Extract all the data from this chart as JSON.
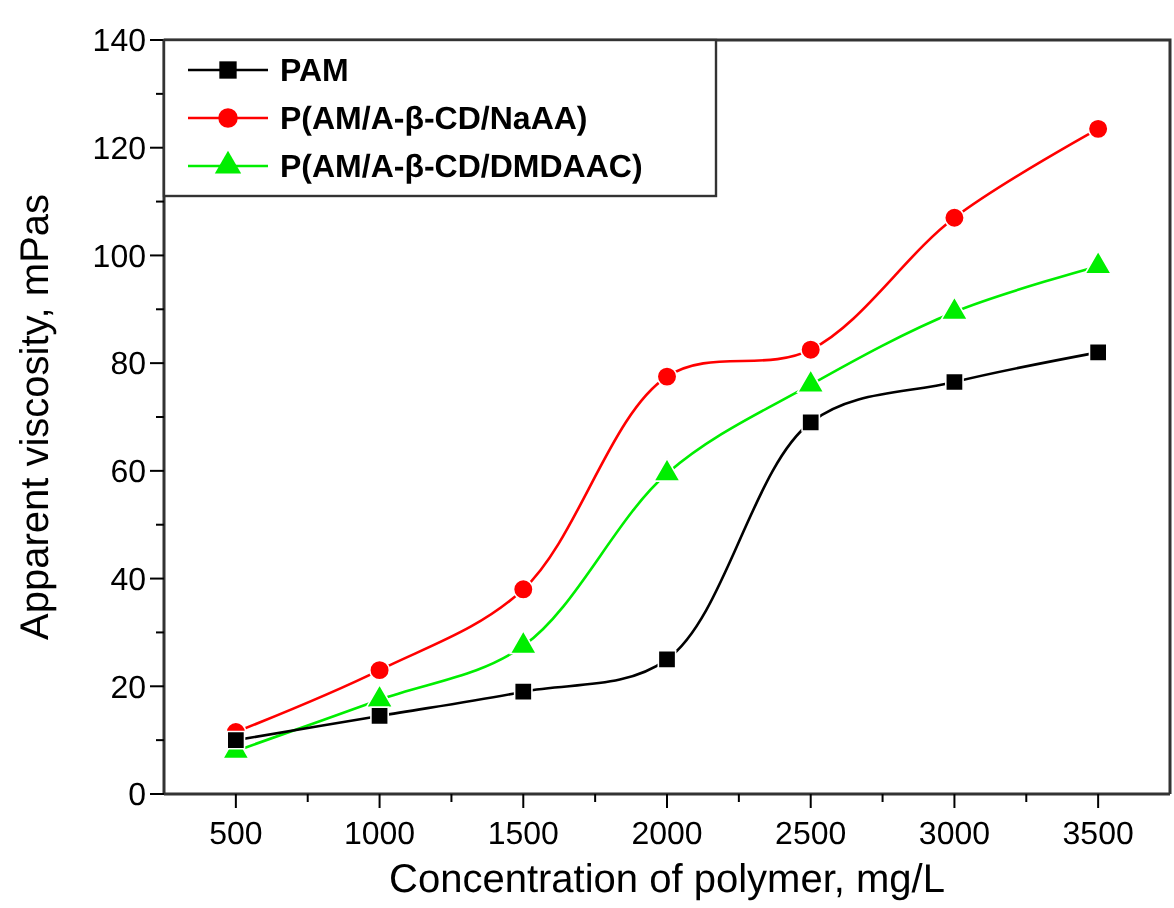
{
  "chart_data": {
    "type": "line",
    "xlabel": "Concentration of polymer, mg/L",
    "ylabel": "Apparent viscosity, mPas",
    "x": [
      500,
      1000,
      1500,
      2000,
      2500,
      3000,
      3500
    ],
    "xlim": [
      250,
      3750
    ],
    "xticks": [
      500,
      {
        "value": 750,
        "label": null
      },
      1000,
      {
        "value": 1250,
        "label": null
      },
      1500,
      {
        "value": 1750,
        "label": null
      },
      2000,
      {
        "value": 2250,
        "label": null
      },
      2500,
      {
        "value": 2750,
        "label": null
      },
      3000,
      {
        "value": 3250,
        "label": null
      },
      3500
    ],
    "ylim": [
      0,
      140
    ],
    "yticks": [
      0,
      {
        "value": 10,
        "label": null
      },
      20,
      {
        "value": 30,
        "label": null
      },
      40,
      {
        "value": 50,
        "label": null
      },
      60,
      {
        "value": 70,
        "label": null
      },
      80,
      {
        "value": 90,
        "label": null
      },
      100,
      {
        "value": 110,
        "label": null
      },
      120,
      {
        "value": 130,
        "label": null
      },
      140
    ],
    "series": [
      {
        "name": "PAM",
        "color": "#000000",
        "marker": "square",
        "values": [
          10,
          14.5,
          19,
          25,
          69,
          76.5,
          82
        ]
      },
      {
        "name": "P(AM/A-β-CD/NaAA)",
        "color": "#ff0000",
        "marker": "circle",
        "values": [
          11.5,
          23,
          38,
          77.5,
          82.5,
          107,
          123.5
        ]
      },
      {
        "name": "P(AM/A-β-CD/DMDAAC)",
        "color": "#00ee00",
        "marker": "triangle",
        "values": [
          8,
          17.5,
          27.5,
          59.5,
          76,
          89.5,
          98
        ]
      }
    ],
    "legend": "top left",
    "grid": false,
    "line_style": "solid"
  }
}
